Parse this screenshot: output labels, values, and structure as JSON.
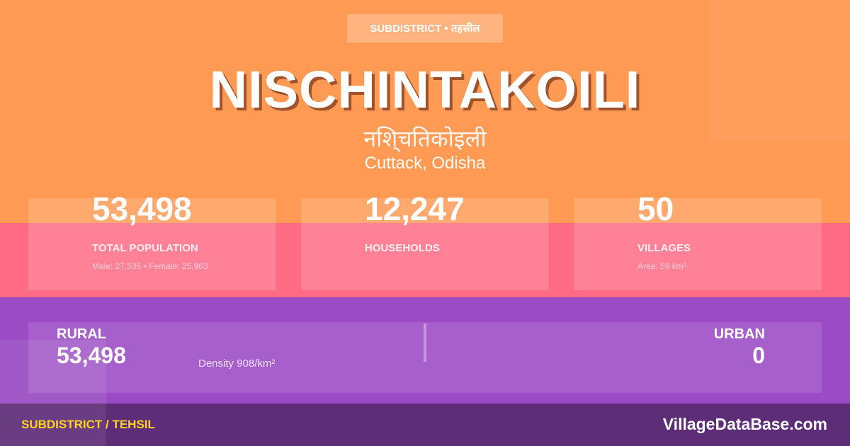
{
  "badge": "SUBDISTRICT • तहसील",
  "title": "NISCHINTAKOILI",
  "title_hindi": "नशि्चतिकोइली",
  "location": "Cuttack, Odisha",
  "stats": [
    {
      "value": "53,498",
      "label": "TOTAL POPULATION",
      "sub": "Male: 27,535 • Female: 25,963"
    },
    {
      "value": "12,247",
      "label": "HOUSEHOLDS",
      "sub": ""
    },
    {
      "value": "50",
      "label": "VILLAGES",
      "sub": "Area: 59 km²"
    }
  ],
  "rural": {
    "label": "RURAL",
    "value": "53,498"
  },
  "density": "Density 908/km²",
  "urban": {
    "label": "URBAN",
    "value": "0"
  },
  "footer": {
    "left": "SUBDISTRICT / TEHSIL",
    "right": "VillageDataBase.com"
  },
  "colors": {
    "top": "#FF9A55",
    "pink": "#FF6B85",
    "purple": "#9B4BC4",
    "footer": "#5E2D78",
    "footer_label": "#FFD21F"
  }
}
